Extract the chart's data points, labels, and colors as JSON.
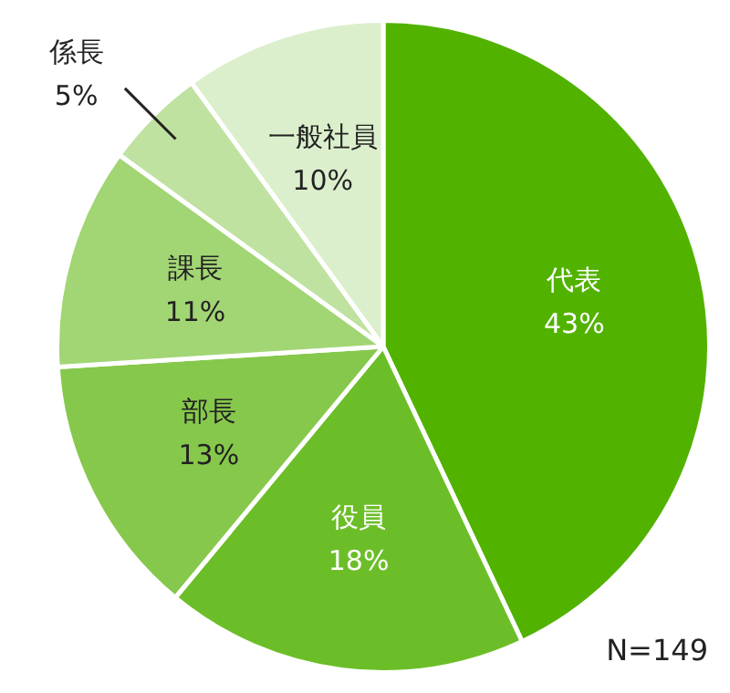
{
  "chart_data": {
    "type": "pie",
    "categories": [
      "代表",
      "役員",
      "部長",
      "課長",
      "係長",
      "一般社員"
    ],
    "values": [
      43,
      18,
      13,
      11,
      5,
      10
    ],
    "value_labels": [
      "43%",
      "18%",
      "13%",
      "11%",
      "5%",
      "10%"
    ],
    "colors": [
      "#52b200",
      "#6cbe28",
      "#86c84c",
      "#a2d574",
      "#bfe2a0",
      "#dcefcc"
    ],
    "annotations": [
      "N=149"
    ],
    "legend": false
  }
}
